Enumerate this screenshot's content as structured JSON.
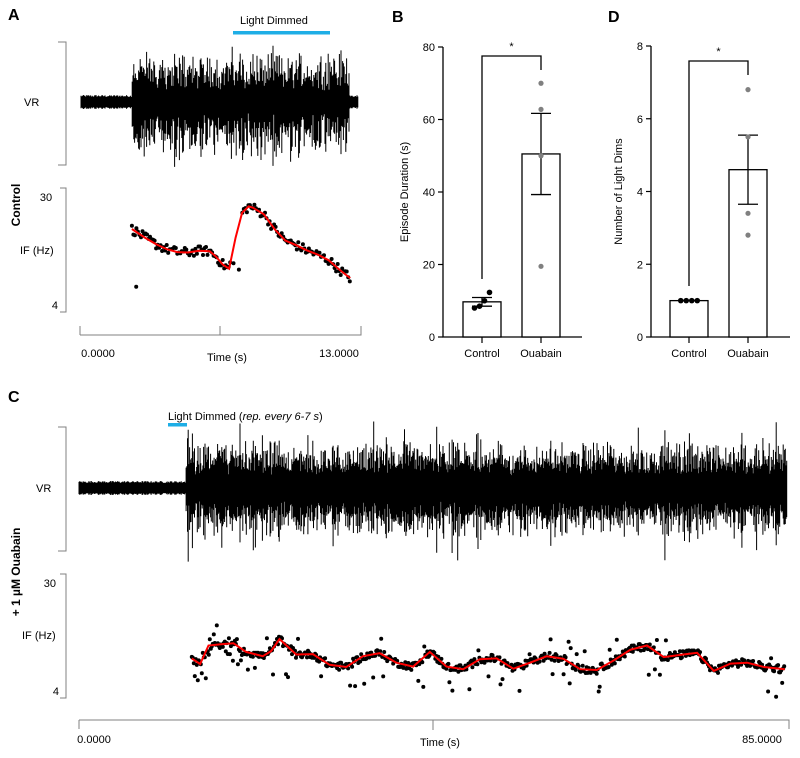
{
  "colors": {
    "trace": "#000000",
    "fit": "#ff0000",
    "light_bar": "#1eaee6",
    "axis": "#808080",
    "dot_control": "#000000",
    "dot_ouabain": "#808080"
  },
  "chart_data": [
    {
      "id": "A",
      "type": "line",
      "panel_label": "A",
      "condition_label": "Control",
      "annotation": "Light Dimmed",
      "light_dimmed_interval_s": [
        6.5,
        11.5
      ],
      "trace_label": "VR",
      "if_label": "IF (Hz)",
      "if_ylim": [
        4,
        30
      ],
      "if_ticks": [
        "30",
        "4"
      ],
      "xlabel": "Time (s)",
      "xlim": [
        0,
        13
      ],
      "x_ticks": [
        "0.0000",
        "13.0000"
      ],
      "burst_interval_s": [
        2.4,
        12.5
      ],
      "fit_curve": {
        "x": [
          2.4,
          3.0,
          3.5,
          4.0,
          4.5,
          5.0,
          5.5,
          6.0,
          6.3,
          6.6,
          6.9,
          7.2,
          7.5,
          7.8,
          8.0,
          8.5,
          9.0,
          9.5,
          10.0,
          10.5,
          11.0,
          11.5,
          12.0,
          12.5
        ],
        "y": [
          22.5,
          20.5,
          19.0,
          17.8,
          17.1,
          17.0,
          17.4,
          17.3,
          16.0,
          14.2,
          13.2,
          20.5,
          26.3,
          27.8,
          27.5,
          26.0,
          22.5,
          19.8,
          18.7,
          17.5,
          16.5,
          15.2,
          13.0,
          11.0
        ]
      },
      "outlier_points": {
        "x": [
          2.6,
          7.1,
          7.35
        ],
        "y": [
          9.0,
          14.5,
          13.0
        ]
      }
    },
    {
      "id": "B",
      "type": "bar",
      "panel_label": "B",
      "categories": [
        "Control",
        "Ouabain"
      ],
      "values": [
        9.7,
        50.5
      ],
      "errors_sem": [
        1.2,
        11.2
      ],
      "points": [
        [
          8.0,
          8.5,
          10.0,
          12.3
        ],
        [
          19.5,
          50.0,
          62.8,
          70.0
        ]
      ],
      "ylabel": "Episode Duration (s)",
      "ylim": [
        0,
        80
      ],
      "y_ticks": [
        0,
        20,
        40,
        60,
        80
      ],
      "significance": "*"
    },
    {
      "id": "C",
      "type": "line",
      "panel_label": "C",
      "condition_label": "+ 1 µM Ouabain",
      "annotation_main": "Light Dimmed (",
      "annotation_italic": "rep. every 6-7 s",
      "annotation_close": ")",
      "light_dimmed_interval_s": [
        12.5,
        15.0
      ],
      "trace_label": "VR",
      "if_label": "IF (Hz)",
      "if_ylim": [
        4,
        30
      ],
      "if_ticks": [
        "30",
        "4"
      ],
      "xlabel": "Time (s)",
      "xlim": [
        0,
        85
      ],
      "x_ticks": [
        "0.0000",
        "85.0000"
      ],
      "burst_interval_s": [
        12.8,
        85
      ],
      "fit_curve": {
        "x": [
          13.5,
          14.5,
          15.5,
          17,
          18.5,
          20,
          22,
          23,
          24,
          26,
          28,
          30,
          32,
          34,
          36,
          38,
          40,
          42,
          44,
          46,
          48,
          50,
          52,
          54,
          56,
          58,
          60,
          62,
          64,
          66,
          68,
          70,
          72,
          74,
          76,
          78,
          80,
          82,
          84.5
        ],
        "y": [
          12.5,
          11.2,
          15.5,
          15.8,
          16.0,
          14.0,
          13.0,
          14.2,
          17.0,
          13.4,
          13.5,
          11.0,
          10.5,
          13.0,
          13.7,
          11.5,
          10.6,
          14.0,
          10.6,
          10.0,
          12.3,
          12.5,
          10.1,
          11.5,
          13.0,
          12.4,
          10.0,
          9.8,
          12.0,
          14.5,
          15.5,
          12.8,
          13.3,
          13.8,
          9.6,
          11.3,
          11.5,
          10.5,
          10.0
        ]
      }
    },
    {
      "id": "D",
      "type": "bar",
      "panel_label": "D",
      "categories": [
        "Control",
        "Ouabain"
      ],
      "values": [
        1.0,
        4.6
      ],
      "errors_sem": [
        0.0,
        0.95
      ],
      "points": [
        [
          1,
          1,
          1,
          1
        ],
        [
          2.8,
          3.4,
          5.5,
          6.8
        ]
      ],
      "ylabel": "Number of Light Dims",
      "ylim": [
        0,
        8
      ],
      "y_ticks": [
        0,
        2,
        4,
        6,
        8
      ],
      "significance": "*"
    }
  ]
}
